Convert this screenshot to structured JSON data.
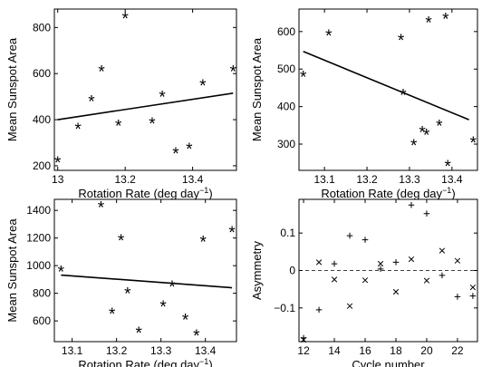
{
  "chart_data": [
    {
      "type": "scatter",
      "xlabel": "Rotation Rate (deg day",
      "xlabel_sup": "−1",
      "xlabel_end": ")",
      "ylabel": "Mean Sunspot Area",
      "xlim": [
        12.99,
        13.53
      ],
      "ylim": [
        180,
        880
      ],
      "xticks": [
        13,
        13.2,
        13.4
      ],
      "xtick_labels": [
        "13",
        "13.2",
        "13.4"
      ],
      "yticks": [
        200,
        400,
        600,
        800
      ],
      "ytick_labels": [
        "200",
        "400",
        "600",
        "800"
      ],
      "marker": "star",
      "series": [
        {
          "x": [
            13.0,
            13.06,
            13.1,
            13.13,
            13.18,
            13.2,
            13.28,
            13.31,
            13.35,
            13.39,
            13.43,
            13.52
          ],
          "y": [
            215,
            360,
            480,
            610,
            375,
            840,
            385,
            500,
            255,
            275,
            550,
            610
          ]
        }
      ],
      "fit_line": {
        "x": [
          13.0,
          13.52
        ],
        "y": [
          400,
          515
        ]
      }
    },
    {
      "type": "scatter",
      "xlabel": "Rotation Rate (deg day",
      "xlabel_sup": "−1",
      "xlabel_end": ")",
      "ylabel": "Mean Sunspot Area",
      "xlim": [
        13.04,
        13.46
      ],
      "ylim": [
        230,
        660
      ],
      "xticks": [
        13.1,
        13.2,
        13.3,
        13.4
      ],
      "xtick_labels": [
        "13.1",
        "13.2",
        "13.3",
        "13.4"
      ],
      "yticks": [
        300,
        400,
        500,
        600
      ],
      "ytick_labels": [
        "300",
        "400",
        "500",
        "600"
      ],
      "marker": "star",
      "series": [
        {
          "x": [
            13.05,
            13.11,
            13.28,
            13.285,
            13.31,
            13.33,
            13.34,
            13.345,
            13.37,
            13.385,
            13.39,
            13.45
          ],
          "y": [
            480,
            590,
            578,
            432,
            298,
            333,
            325,
            625,
            350,
            635,
            242,
            305
          ]
        }
      ],
      "fit_line": {
        "x": [
          13.05,
          13.44
        ],
        "y": [
          547,
          365
        ]
      }
    },
    {
      "type": "scatter",
      "xlabel": "Rotation Rate (deg day",
      "xlabel_sup": "−1",
      "xlabel_end": ")",
      "ylabel": "Mean Sunspot Area",
      "xlim": [
        13.06,
        13.47
      ],
      "ylim": [
        450,
        1480
      ],
      "xticks": [
        13.1,
        13.2,
        13.3,
        13.4
      ],
      "xtick_labels": [
        "13.1",
        "13.2",
        "13.3",
        "13.4"
      ],
      "yticks": [
        600,
        800,
        1000,
        1200,
        1400
      ],
      "ytick_labels": [
        "600",
        "800",
        "1000",
        "1200",
        "1400"
      ],
      "marker": "star",
      "series": [
        {
          "x": [
            13.075,
            13.165,
            13.19,
            13.21,
            13.225,
            13.25,
            13.305,
            13.325,
            13.355,
            13.38,
            13.395,
            13.46
          ],
          "y": [
            960,
            1425,
            655,
            1185,
            800,
            515,
            705,
            850,
            610,
            495,
            1175,
            1245
          ]
        }
      ],
      "fit_line": {
        "x": [
          13.075,
          13.46
        ],
        "y": [
          932,
          840
        ]
      }
    },
    {
      "type": "scatter",
      "xlabel": "Cycle number",
      "ylabel": "Asymmetry",
      "xlim": [
        11.7,
        23.3
      ],
      "ylim": [
        -0.19,
        0.19
      ],
      "xticks": [
        12,
        14,
        16,
        18,
        20,
        22
      ],
      "xtick_labels": [
        "12",
        "14",
        "16",
        "18",
        "20",
        "22"
      ],
      "yticks": [
        -0.1,
        0,
        0.1
      ],
      "ytick_labels": [
        "−0.1",
        "0",
        "0.1"
      ],
      "zero_line": true,
      "series": [
        {
          "marker": "plus",
          "x": [
            12,
            13,
            14,
            15,
            16,
            17,
            18,
            19,
            20,
            21,
            22,
            23
          ],
          "y": [
            -0.18,
            -0.105,
            0.018,
            0.093,
            0.082,
            0.004,
            0.022,
            0.175,
            0.152,
            -0.013,
            -0.07,
            -0.068
          ]
        },
        {
          "marker": "cross",
          "x": [
            12,
            13,
            14,
            15,
            16,
            17,
            18,
            19,
            20,
            21,
            22,
            23
          ],
          "y": [
            -0.185,
            0.022,
            -0.024,
            -0.095,
            -0.026,
            0.018,
            -0.057,
            0.03,
            -0.027,
            0.053,
            0.026,
            -0.045
          ]
        }
      ]
    }
  ]
}
